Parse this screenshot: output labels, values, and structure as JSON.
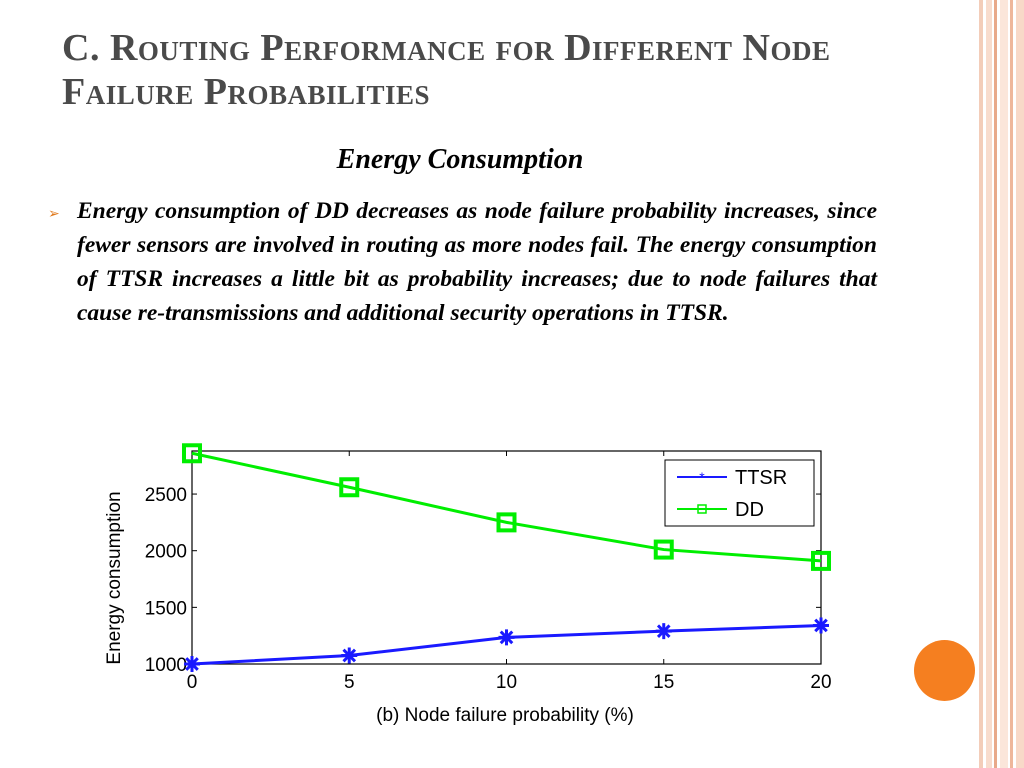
{
  "slide": {
    "title": "C. Routing Performance for Different Node Failure Probabilities",
    "subtitle": "Energy Consumption",
    "bullet": "Energy consumption of DD decreases as node failure probability increases, since fewer sensors are involved in routing as more nodes fail. The energy consumption of TTSR increases a little bit as probability increases; due to node failures that cause re-transmissions and additional security operations in TTSR.",
    "bullet_marker": "➢",
    "colors": {
      "accent": "#f57f20",
      "title_text": "#4a4a4a",
      "stripe_light": "#f8d9c8",
      "stripe_dark": "#e8a98a"
    }
  },
  "chart_data": {
    "type": "line",
    "title": "",
    "xlabel": "(b) Node failure probability (%)",
    "ylabel": "Energy consumption",
    "x": [
      0,
      5,
      10,
      15,
      20
    ],
    "xlim": [
      0,
      20
    ],
    "ylim": [
      1000,
      2880
    ],
    "xticks": [
      "0",
      "5",
      "10",
      "15",
      "20"
    ],
    "yticks": [
      "1000",
      "1500",
      "2000",
      "2500"
    ],
    "grid": false,
    "legend_position": "top-right",
    "series": [
      {
        "name": "TTSR",
        "values": [
          1000,
          1075,
          1235,
          1290,
          1340
        ],
        "color": "#1a1aff",
        "marker": "asterisk"
      },
      {
        "name": "DD",
        "values": [
          2860,
          2560,
          2250,
          2010,
          1910
        ],
        "color": "#00ee00",
        "marker": "square"
      }
    ]
  }
}
